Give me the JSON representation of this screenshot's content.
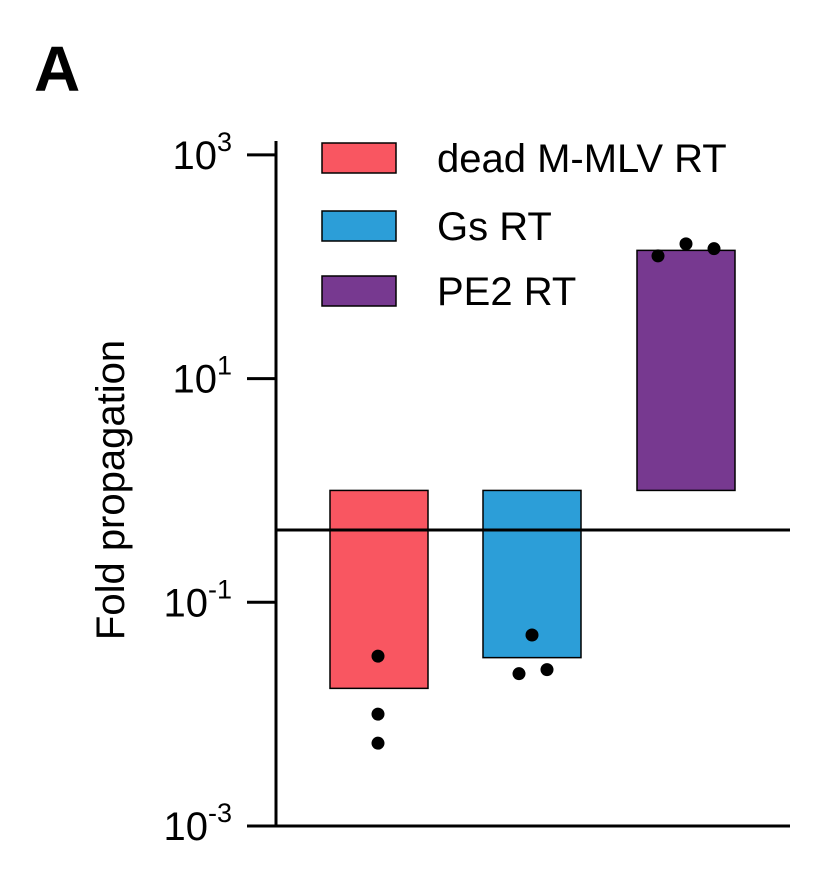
{
  "panel_label": "A",
  "chart_data": {
    "type": "bar",
    "title": "",
    "xlabel": "",
    "ylabel": "Fold propagation",
    "yscale": "log",
    "ylim": [
      0.001,
      10000
    ],
    "baseline": 1,
    "yticks": [
      {
        "value": 1000,
        "base": "10",
        "exp": "3"
      },
      {
        "value": 10,
        "base": "10",
        "exp": "1"
      },
      {
        "value": 0.1,
        "base": "10",
        "exp": "-1"
      },
      {
        "value": 0.001,
        "base": "10",
        "exp": "-3"
      }
    ],
    "legend_position": "top-left",
    "categories": [
      "dead M-MLV RT",
      "Gs RT",
      "PE2 RT"
    ],
    "series": [
      {
        "name": "dead M-MLV RT",
        "color": "#F95661",
        "value": 0.017,
        "points": [
          0.033,
          0.01,
          0.0055
        ]
      },
      {
        "name": "Gs RT",
        "color": "#2C9ED8",
        "value": 0.032,
        "points": [
          0.051,
          0.023,
          0.025
        ]
      },
      {
        "name": "PE2 RT",
        "color": "#773990",
        "value": 140,
        "points": [
          125,
          160,
          145
        ]
      }
    ]
  }
}
